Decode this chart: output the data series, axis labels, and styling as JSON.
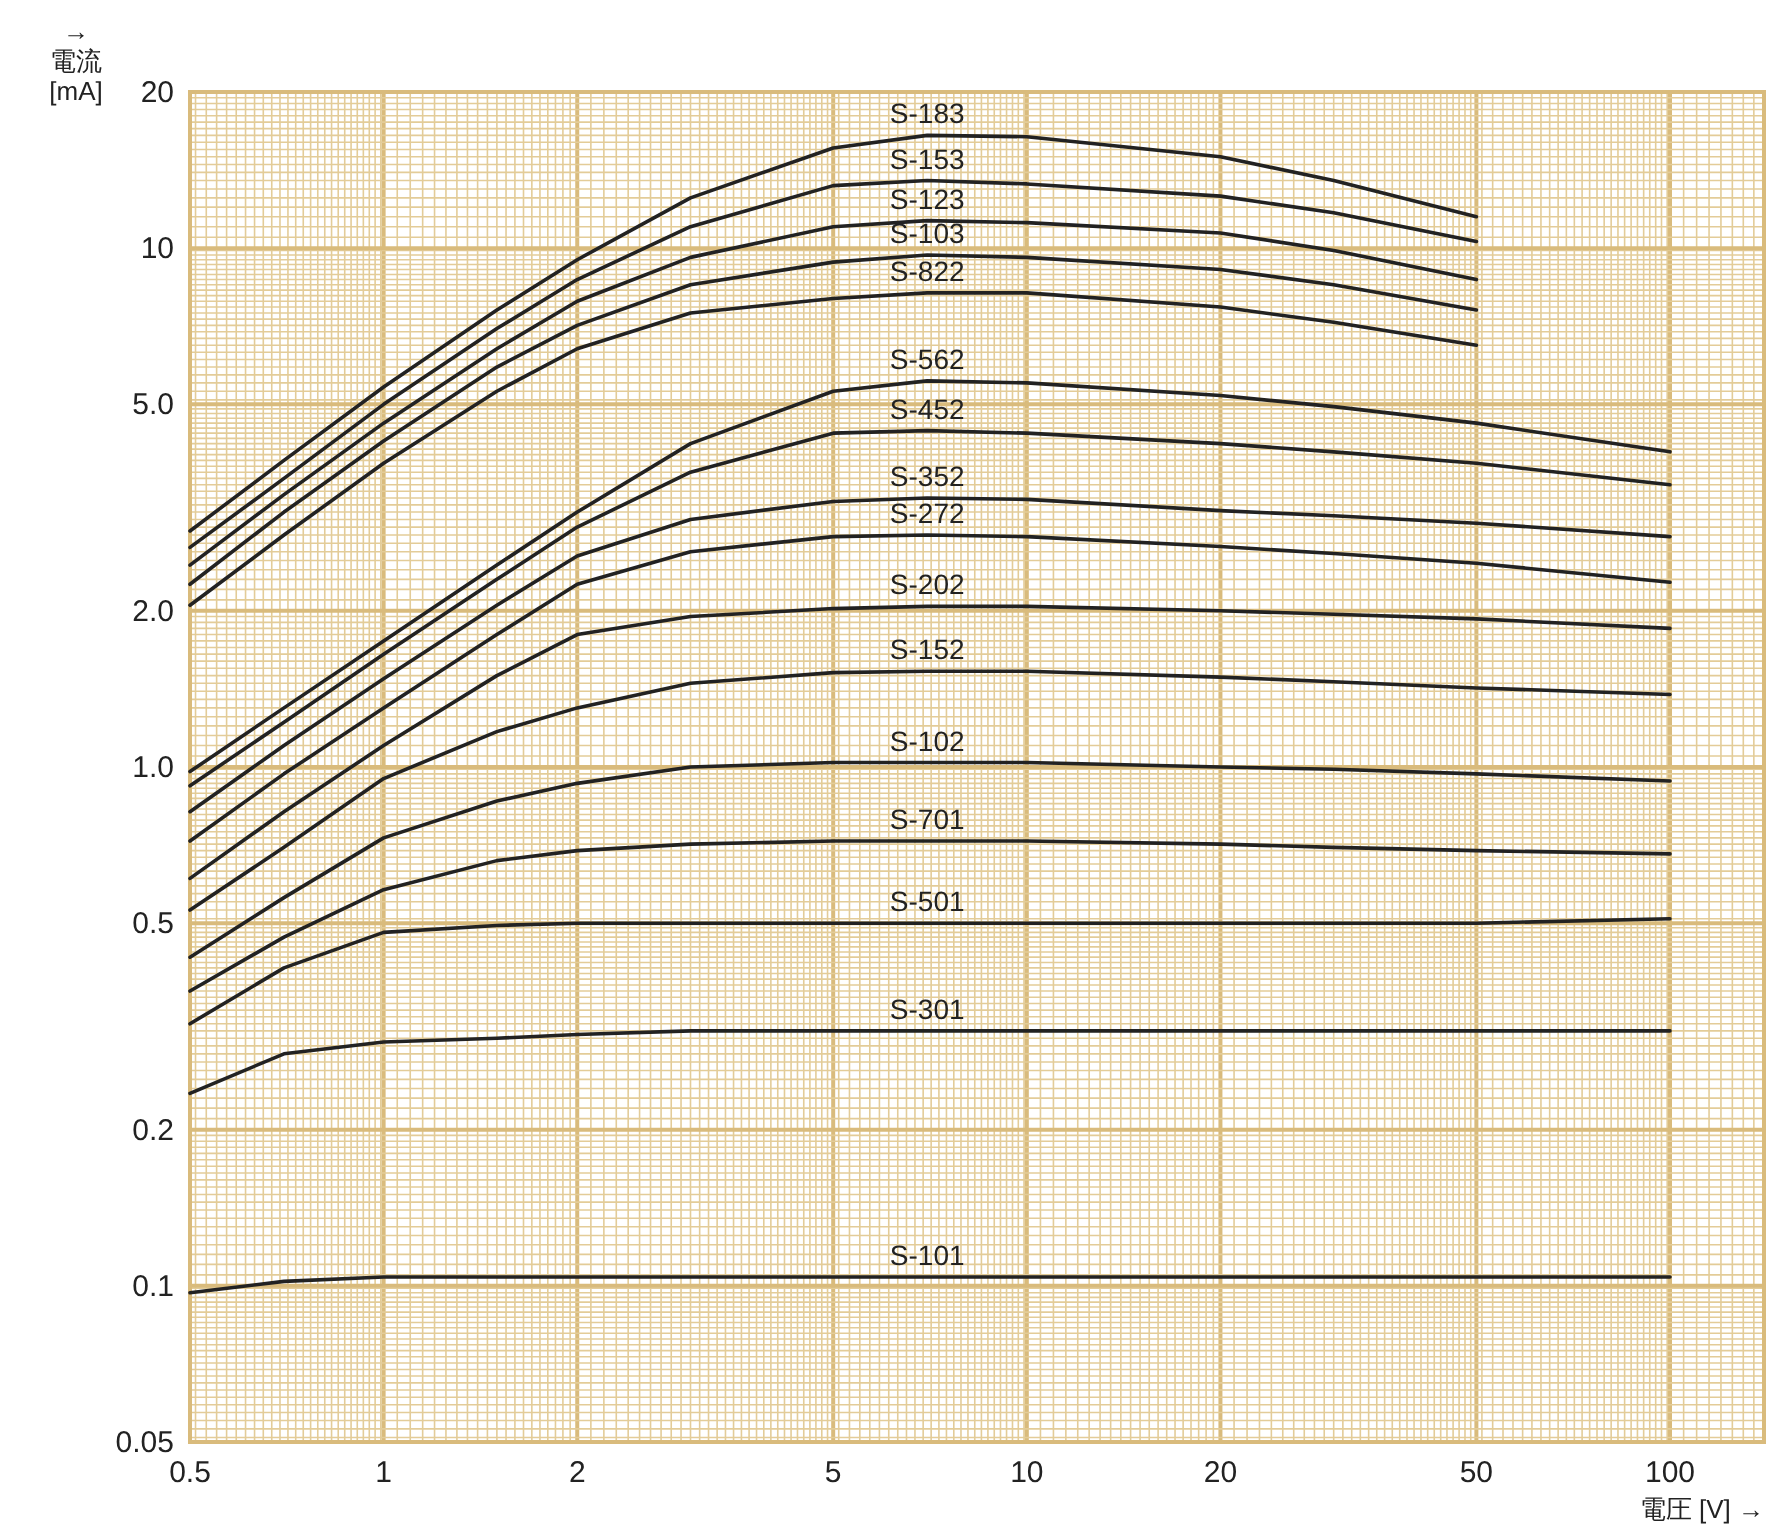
{
  "chart_data": {
    "type": "line",
    "xlabel": "電圧 [V] →",
    "ylabel": "→ 電流 [mA]",
    "log": "xy",
    "grid": true,
    "legend": false,
    "marker": "none",
    "line_style": "solid",
    "xlim": [
      0.5,
      140
    ],
    "ylim": [
      0.05,
      20
    ],
    "xticks": [
      0.5,
      1,
      2,
      5,
      10,
      20,
      50,
      100
    ],
    "yticks": [
      0.05,
      0.1,
      0.2,
      {
        "value": 0.5,
        "label": "0.5"
      },
      {
        "value": 1,
        "label": "1.0"
      },
      {
        "value": 2,
        "label": "2.0"
      },
      {
        "value": 5,
        "label": "5.0"
      },
      10,
      20
    ],
    "x": [
      0.5,
      0.7,
      1,
      1.5,
      2,
      3,
      5,
      7,
      10,
      20,
      30,
      50,
      100
    ],
    "series": [
      {
        "name": "S-183",
        "color": "#222222",
        "x": [
          0.5,
          0.7,
          1,
          1.5,
          2,
          3,
          5,
          7,
          10,
          20,
          30,
          50
        ],
        "values": [
          2.85,
          3.9,
          5.4,
          7.6,
          9.5,
          12.5,
          15.6,
          16.5,
          16.4,
          15.0,
          13.5,
          11.5
        ]
      },
      {
        "name": "S-153",
        "color": "#222222",
        "x": [
          0.5,
          0.7,
          1,
          1.5,
          2,
          3,
          5,
          7,
          10,
          20,
          30,
          50
        ],
        "values": [
          2.65,
          3.6,
          5.0,
          7.0,
          8.7,
          11.0,
          13.2,
          13.5,
          13.3,
          12.6,
          11.7,
          10.3
        ]
      },
      {
        "name": "S-123",
        "color": "#222222",
        "x": [
          0.5,
          0.7,
          1,
          1.5,
          2,
          3,
          5,
          7,
          10,
          20,
          30,
          50
        ],
        "values": [
          2.45,
          3.35,
          4.6,
          6.4,
          7.9,
          9.6,
          11.0,
          11.3,
          11.2,
          10.7,
          9.9,
          8.7
        ]
      },
      {
        "name": "S-103",
        "color": "#222222",
        "x": [
          0.5,
          0.7,
          1,
          1.5,
          2,
          3,
          5,
          7,
          10,
          20,
          30,
          50
        ],
        "values": [
          2.25,
          3.1,
          4.25,
          5.9,
          7.1,
          8.5,
          9.4,
          9.7,
          9.6,
          9.1,
          8.5,
          7.6
        ]
      },
      {
        "name": "S-822",
        "color": "#222222",
        "x": [
          0.5,
          0.7,
          1,
          1.5,
          2,
          3,
          5,
          7,
          10,
          20,
          30,
          50
        ],
        "values": [
          2.05,
          2.8,
          3.85,
          5.3,
          6.4,
          7.5,
          8.0,
          8.2,
          8.2,
          7.7,
          7.2,
          6.5
        ]
      },
      {
        "name": "S-562",
        "color": "#222222",
        "values": [
          0.98,
          1.3,
          1.75,
          2.45,
          3.1,
          4.2,
          5.3,
          5.55,
          5.5,
          5.2,
          4.95,
          4.6,
          4.05
        ]
      },
      {
        "name": "S-452",
        "color": "#222222",
        "values": [
          0.92,
          1.22,
          1.65,
          2.3,
          2.9,
          3.7,
          4.4,
          4.45,
          4.4,
          4.2,
          4.05,
          3.85,
          3.5
        ]
      },
      {
        "name": "S-352",
        "color": "#222222",
        "values": [
          0.82,
          1.1,
          1.48,
          2.05,
          2.55,
          3.0,
          3.25,
          3.3,
          3.28,
          3.12,
          3.05,
          2.95,
          2.78
        ]
      },
      {
        "name": "S-272",
        "color": "#222222",
        "values": [
          0.72,
          0.97,
          1.3,
          1.8,
          2.25,
          2.6,
          2.78,
          2.8,
          2.78,
          2.66,
          2.58,
          2.47,
          2.27
        ]
      },
      {
        "name": "S-202",
        "color": "#222222",
        "values": [
          0.61,
          0.82,
          1.1,
          1.5,
          1.8,
          1.95,
          2.02,
          2.04,
          2.04,
          2.0,
          1.97,
          1.93,
          1.85
        ]
      },
      {
        "name": "S-152",
        "color": "#222222",
        "values": [
          0.53,
          0.7,
          0.95,
          1.17,
          1.3,
          1.45,
          1.52,
          1.53,
          1.53,
          1.49,
          1.46,
          1.42,
          1.38
        ]
      },
      {
        "name": "S-102",
        "color": "#222222",
        "values": [
          0.43,
          0.56,
          0.73,
          0.86,
          0.93,
          1.0,
          1.02,
          1.02,
          1.02,
          1.0,
          0.99,
          0.97,
          0.94
        ]
      },
      {
        "name": "S-701",
        "color": "#222222",
        "values": [
          0.37,
          0.47,
          0.58,
          0.66,
          0.69,
          0.71,
          0.72,
          0.72,
          0.72,
          0.71,
          0.7,
          0.69,
          0.68
        ]
      },
      {
        "name": "S-501",
        "color": "#222222",
        "values": [
          0.32,
          0.41,
          0.48,
          0.495,
          0.5,
          0.5,
          0.5,
          0.5,
          0.5,
          0.5,
          0.5,
          0.5,
          0.51
        ]
      },
      {
        "name": "S-301",
        "color": "#222222",
        "values": [
          0.235,
          0.28,
          0.295,
          0.3,
          0.305,
          0.31,
          0.31,
          0.31,
          0.31,
          0.31,
          0.31,
          0.31,
          0.31
        ]
      },
      {
        "name": "S-101",
        "color": "#222222",
        "values": [
          0.097,
          0.102,
          0.104,
          0.104,
          0.104,
          0.104,
          0.104,
          0.104,
          0.104,
          0.104,
          0.104,
          0.104,
          0.104
        ]
      }
    ]
  }
}
